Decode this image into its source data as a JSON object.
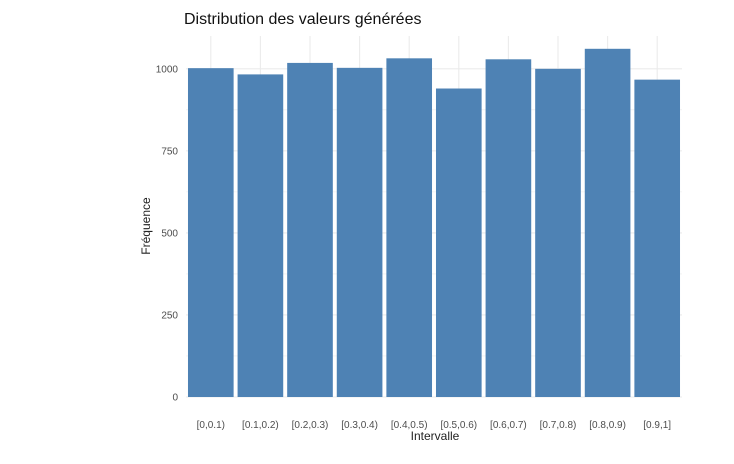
{
  "chart_data": {
    "type": "bar",
    "title": "Distribution des valeurs générées",
    "xlabel": "Intervalle",
    "ylabel": "Fréquence",
    "categories": [
      "[0,0.1)",
      "[0.1,0.2)",
      "[0.2,0.3)",
      "[0.3,0.4)",
      "[0.4,0.5)",
      "[0.5,0.6)",
      "[0.6,0.7)",
      "[0.7,0.8)",
      "[0.8,0.9)",
      "[0.9,1]"
    ],
    "values": [
      1002,
      983,
      1018,
      1003,
      1032,
      940,
      1029,
      1000,
      1061,
      967
    ],
    "ylim": [
      0,
      1100
    ],
    "yticks": [
      0,
      250,
      500,
      750,
      1000
    ],
    "grid": true,
    "legend": "none",
    "colors": {
      "bar": "#4e82b4",
      "grid": "#ebebeb"
    }
  }
}
